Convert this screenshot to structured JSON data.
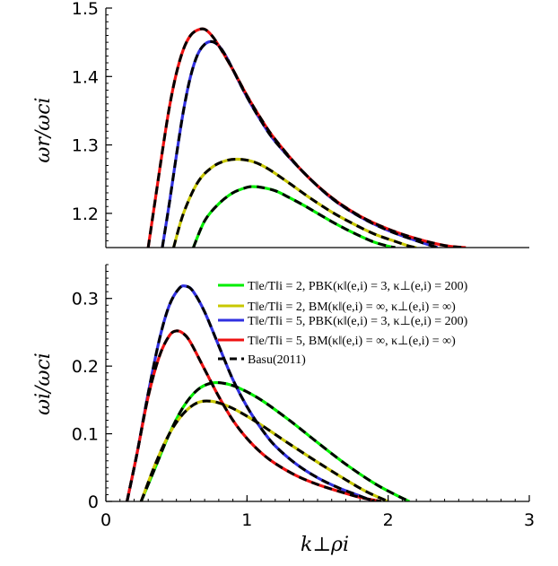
{
  "figure": {
    "legend_labels": [
      "T‖e/T‖i = 2, PBK(κ‖(e,i) = 3, κ⊥(e,i) = 200)",
      "T‖e/T‖i = 2, BM(κ‖(e,i) = ∞, κ⊥(e,i) = ∞)",
      "T‖e/T‖i = 5, PBK(κ‖(e,i) = 3, κ⊥(e,i) = 200)",
      "T‖e/T‖i = 5, BM(κ‖(e,i) = ∞, κ⊥(e,i) = ∞)",
      "Basu(2011)"
    ]
  },
  "chart_data": [
    {
      "type": "line",
      "title": "",
      "xlabel": "",
      "ylabel": "ωr/ωci",
      "xlim": [
        0,
        3
      ],
      "ylim": [
        1.15,
        1.5
      ],
      "x_ticks": [],
      "x_ticklabels": [],
      "y_ticks": [
        1.2,
        1.3,
        1.4,
        1.5
      ],
      "y_ticklabels": [
        "1.2",
        "1.3",
        "1.4",
        "1.5"
      ],
      "series": [
        {
          "name": "T‖e/T‖i = 2, PBK(κ‖(e,i) = 3, κ⊥(e,i) = 200)",
          "color": "#00ee00",
          "x": [
            0.62,
            0.7,
            0.8,
            0.9,
            1.0,
            1.05,
            1.1,
            1.2,
            1.3,
            1.4,
            1.5,
            1.6,
            1.7,
            1.8,
            1.9,
            2.0,
            2.05
          ],
          "y": [
            1.15,
            1.189,
            1.214,
            1.23,
            1.238,
            1.239,
            1.238,
            1.233,
            1.223,
            1.212,
            1.2,
            1.188,
            1.177,
            1.167,
            1.158,
            1.152,
            1.15
          ]
        },
        {
          "name": "T‖e/T‖i = 2, BM(κ‖(e,i) = ∞, κ⊥(e,i) = ∞)",
          "color": "#c8c800",
          "x": [
            0.48,
            0.55,
            0.65,
            0.75,
            0.85,
            0.95,
            1.05,
            1.15,
            1.3,
            1.45,
            1.6,
            1.75,
            1.9,
            2.05,
            2.15,
            2.2
          ],
          "y": [
            1.15,
            1.2,
            1.245,
            1.267,
            1.277,
            1.279,
            1.275,
            1.265,
            1.244,
            1.222,
            1.202,
            1.185,
            1.17,
            1.159,
            1.152,
            1.15
          ]
        },
        {
          "name": "T‖e/T‖i = 5, PBK(κ‖(e,i) = 3, κ⊥(e,i) = 200)",
          "color": "#3030e0",
          "x": [
            0.4,
            0.45,
            0.5,
            0.55,
            0.6,
            0.65,
            0.7,
            0.75,
            0.8,
            0.85,
            0.9,
            1.0,
            1.1,
            1.2,
            1.4,
            1.6,
            1.8,
            2.0,
            2.2,
            2.35
          ],
          "y": [
            1.15,
            1.215,
            1.285,
            1.35,
            1.4,
            1.432,
            1.447,
            1.451,
            1.445,
            1.43,
            1.41,
            1.37,
            1.335,
            1.305,
            1.26,
            1.222,
            1.195,
            1.175,
            1.16,
            1.15
          ]
        },
        {
          "name": "T‖e/T‖i = 5, BM(κ‖(e,i) = ∞, κ⊥(e,i) = ∞)",
          "color": "#ee1111",
          "x": [
            0.3,
            0.35,
            0.4,
            0.45,
            0.5,
            0.55,
            0.6,
            0.65,
            0.7,
            0.75,
            0.8,
            0.9,
            1.0,
            1.1,
            1.2,
            1.4,
            1.6,
            1.8,
            2.0,
            2.2,
            2.4,
            2.55
          ],
          "y": [
            1.15,
            1.22,
            1.29,
            1.355,
            1.405,
            1.44,
            1.46,
            1.468,
            1.469,
            1.46,
            1.445,
            1.41,
            1.372,
            1.338,
            1.308,
            1.26,
            1.223,
            1.196,
            1.177,
            1.163,
            1.153,
            1.15
          ]
        },
        {
          "name": "Basu(2011)",
          "color": "#000000",
          "dashed": true,
          "overlays": [
            0,
            1,
            2,
            3
          ]
        }
      ]
    },
    {
      "type": "line",
      "title": "",
      "xlabel": "k⊥ρi",
      "ylabel": "ωi/ωci",
      "xlim": [
        0,
        3
      ],
      "ylim": [
        0,
        0.35
      ],
      "x_ticks": [
        0,
        1,
        2,
        3
      ],
      "x_ticklabels": [
        "0",
        "1",
        "2",
        "3"
      ],
      "y_ticks": [
        0,
        0.1,
        0.2,
        0.3
      ],
      "y_ticklabels": [
        "0",
        "0.1",
        "0.2",
        "0.3"
      ],
      "legend_position": "top-right",
      "series": [
        {
          "name": "T‖e/T‖i = 2, PBK(κ‖(e,i) = 3, κ⊥(e,i) = 200)",
          "color": "#00ee00",
          "x": [
            0.25,
            0.35,
            0.45,
            0.55,
            0.65,
            0.75,
            0.85,
            0.95,
            1.1,
            1.3,
            1.5,
            1.7,
            1.9,
            2.05,
            2.15
          ],
          "y": [
            0,
            0.05,
            0.1,
            0.14,
            0.165,
            0.175,
            0.174,
            0.167,
            0.15,
            0.12,
            0.087,
            0.055,
            0.027,
            0.01,
            0
          ]
        },
        {
          "name": "T‖e/T‖i = 2, BM(κ‖(e,i) = ∞, κ⊥(e,i) = ∞)",
          "color": "#c8c800",
          "x": [
            0.25,
            0.35,
            0.45,
            0.55,
            0.65,
            0.75,
            0.85,
            0.95,
            1.1,
            1.3,
            1.5,
            1.7,
            1.85,
            2.0
          ],
          "y": [
            0,
            0.055,
            0.1,
            0.13,
            0.146,
            0.148,
            0.142,
            0.132,
            0.113,
            0.085,
            0.058,
            0.032,
            0.014,
            0
          ]
        },
        {
          "name": "T‖e/T‖i = 5, PBK(κ‖(e,i) = 3, κ⊥(e,i) = 200)",
          "color": "#3030e0",
          "x": [
            0.15,
            0.22,
            0.3,
            0.38,
            0.45,
            0.52,
            0.57,
            0.62,
            0.7,
            0.8,
            0.9,
            1.0,
            1.1,
            1.2,
            1.35,
            1.5,
            1.65,
            1.8,
            1.9
          ],
          "y": [
            0,
            0.07,
            0.16,
            0.24,
            0.29,
            0.315,
            0.318,
            0.31,
            0.28,
            0.23,
            0.18,
            0.14,
            0.108,
            0.082,
            0.055,
            0.035,
            0.02,
            0.008,
            0
          ]
        },
        {
          "name": "T‖e/T‖i = 5, BM(κ‖(e,i) = ∞, κ⊥(e,i) = ∞)",
          "color": "#ee1111",
          "x": [
            0.15,
            0.22,
            0.3,
            0.38,
            0.45,
            0.5,
            0.55,
            0.6,
            0.7,
            0.8,
            0.9,
            1.0,
            1.1,
            1.2,
            1.35,
            1.5,
            1.65,
            1.8,
            1.95
          ],
          "y": [
            0,
            0.07,
            0.155,
            0.215,
            0.245,
            0.252,
            0.248,
            0.235,
            0.195,
            0.155,
            0.12,
            0.093,
            0.072,
            0.056,
            0.038,
            0.025,
            0.015,
            0.006,
            0
          ]
        },
        {
          "name": "Basu(2011)",
          "color": "#000000",
          "dashed": true,
          "overlays": [
            0,
            1,
            2,
            3
          ]
        }
      ]
    }
  ]
}
